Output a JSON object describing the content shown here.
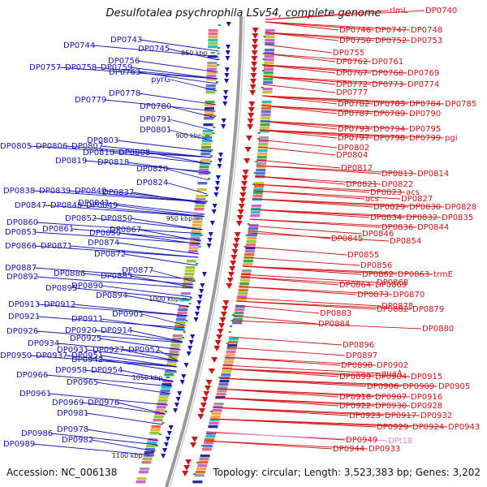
{
  "header": {
    "title": "Desulfotalea psychrophila LSv54, complete genome"
  },
  "footer": {
    "accession": "Accession: NC_006138",
    "summary": "Topology: circular; Length: 3,523,383 bp; Genes: 3,202"
  },
  "colors": {
    "minus_strand": "#1414b4",
    "plus_strand": "#d21414",
    "rna_gene": "#e58ad4",
    "backbone": "#8c8c8c",
    "tick": "#2e9e2e"
  },
  "scale_marks": [
    "850 kbp",
    "900 kbp",
    "950 kbp",
    "1000 kbp",
    "1050 kbp",
    "1100 kbp"
  ],
  "minus_strand_genes": [
    "DP0743",
    "DP0744",
    "DP0745",
    "DP0756",
    "DP0757",
    "DP0758",
    "DP0759",
    "DP0763",
    "pyrG",
    "DP0778",
    "DP0779",
    "DP0780",
    "DP0791",
    "DP0801",
    "DP0803",
    "DP0805",
    "DP0806",
    "DP0807",
    "DP0810",
    "DP0808",
    "DP0819",
    "DP0818",
    "DP0820",
    "DP0824",
    "DP0837",
    "DP0838",
    "DP0839",
    "DP0840",
    "DP0841",
    "DP0847",
    "DP0848",
    "DP0849",
    "DP0852",
    "DP0850",
    "DP0860",
    "DP0861",
    "DP0859",
    "DP0853",
    "DP0867",
    "DP0866",
    "DP0871",
    "DP0874",
    "DP0872",
    "DP0877",
    "DP0887",
    "DP0886",
    "DP0885",
    "DP0892",
    "DP0890",
    "DP0895",
    "DP0894",
    "DP0913",
    "DP0912",
    "DP0921",
    "DP0911",
    "DP0901",
    "DP0920",
    "DP0914",
    "DP0926",
    "DP0925",
    "DP0934",
    "DP0931",
    "DP0927",
    "DP0952",
    "DP0950",
    "DP0937",
    "DP0951",
    "DP0942",
    "DP0958",
    "DP0954",
    "DP0966",
    "DP0965",
    "DP0961",
    "DP0969",
    "DP0976",
    "DP0981",
    "DP0978",
    "DP0986",
    "DP0982",
    "DP0989"
  ],
  "plus_strand_genes": [
    "rlmL",
    "DP0740",
    "DP0746",
    "DP0747",
    "DP0748",
    "DP0750",
    "DP0752",
    "DP0753",
    "DP0755",
    "DP0762",
    "DP0761",
    "DP0767",
    "DP0768",
    "DP0769",
    "DP0772",
    "DP0773",
    "DP0774",
    "DP0777",
    "DP0782",
    "DP0783",
    "DP0784",
    "DP0785",
    "DP0787",
    "DP0789",
    "DP0790",
    "DP0793",
    "DP0794",
    "DP0795",
    "DP0797",
    "DP0798",
    "DP0799",
    "pgi",
    "DP0802",
    "DP0804",
    "DP0812",
    "DP0813",
    "DP0814",
    "DP0821",
    "DP0822",
    "DP0823",
    "acs",
    "acs",
    "DP0827",
    "DP0829",
    "DP0830",
    "DP0828",
    "DP0834",
    "DP0832",
    "DP0835",
    "DP0836",
    "DP0844",
    "DP0846",
    "DP0845",
    "DP0854",
    "DP0855",
    "DP0856",
    "DP0862",
    "DP0863",
    "trmE",
    "DP0868",
    "DP0864",
    "DP0869",
    "DP0873",
    "DP0870",
    "DP0878",
    "DP0883",
    "DP0882",
    "DP0879",
    "DP0884",
    "DP0880",
    "DP0896",
    "DP0897",
    "DP0898",
    "DP0902",
    "guaA",
    "DP0899",
    "DP0904",
    "DP0915",
    "DP0906",
    "DP0909",
    "DP0905",
    "DP0918",
    "DP0907",
    "DP0916",
    "DP0922",
    "DP0930",
    "DP0928",
    "DP0923",
    "DP0917",
    "DP0932",
    "DP0929",
    "DP0924",
    "DP0943",
    "DP0949",
    "DP0944",
    "DP0933"
  ],
  "rna_genes": [
    "DPt18"
  ]
}
